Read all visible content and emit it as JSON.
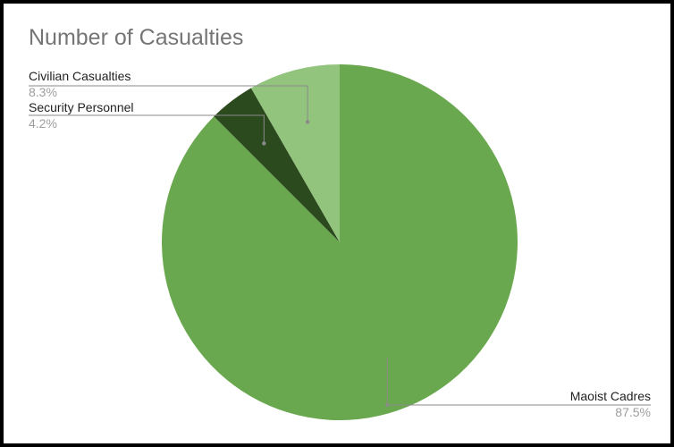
{
  "chart_data": {
    "type": "pie",
    "title": "Number of Casualties",
    "slices": [
      {
        "name": "Maoist Cadres",
        "value": 87.5,
        "label": "87.5%",
        "color": "#6aa84f",
        "label_side": "right"
      },
      {
        "name": "Security Personnel",
        "value": 4.2,
        "label": "4.2%",
        "color": "#2b4a1e",
        "label_side": "left"
      },
      {
        "name": "Civilian Casualties",
        "value": 8.3,
        "label": "8.3%",
        "color": "#93c47d",
        "label_side": "left"
      }
    ],
    "start_angle": "12 o'clock",
    "direction": "clockwise",
    "legend": "none",
    "slice_labels": "outside with leader lines"
  }
}
